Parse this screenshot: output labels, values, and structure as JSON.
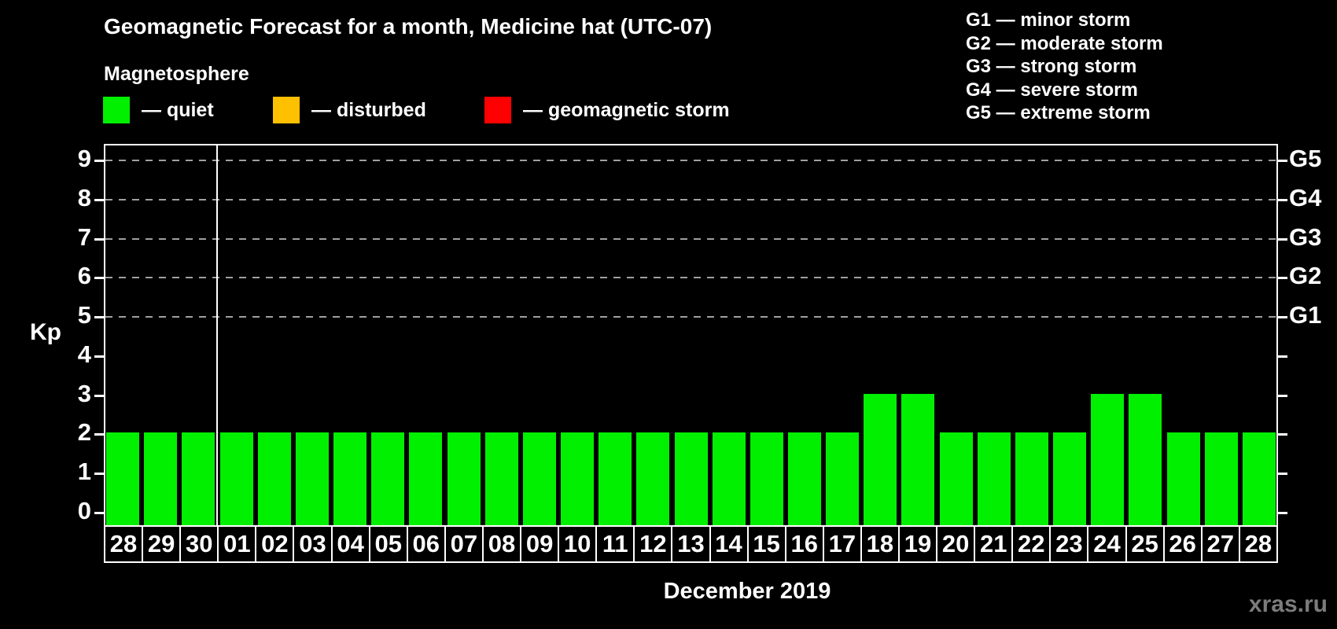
{
  "title": "Geomagnetic Forecast for a month, Medicine hat (UTC-07)",
  "subtitle": "Magnetosphere",
  "legend": {
    "items": [
      {
        "name": "quiet",
        "label": "— quiet",
        "color": "#00f000"
      },
      {
        "name": "disturbed",
        "label": "— disturbed",
        "color": "#ffc000"
      },
      {
        "name": "geomagnetic-storm",
        "label": "— geomagnetic storm",
        "color": "#ff0000"
      }
    ]
  },
  "g_scale_legend": [
    "G1 — minor storm",
    "G2 — moderate storm",
    "G3 — strong storm",
    "G4 — severe storm",
    "G5 — extreme storm"
  ],
  "watermark": "xras.ru",
  "chart_data": {
    "type": "bar",
    "title": "Geomagnetic Forecast for a month, Medicine hat (UTC-07)",
    "xlabel": "December 2019",
    "ylabel": "Kp",
    "ylim": [
      0,
      9
    ],
    "yticks": [
      0,
      1,
      2,
      3,
      4,
      5,
      6,
      7,
      8,
      9
    ],
    "gridline_levels": [
      5,
      6,
      7,
      8,
      9
    ],
    "grid": "dashed horizontal at G-levels only",
    "legend_position": "top",
    "categories": [
      "28",
      "29",
      "30",
      "01",
      "02",
      "03",
      "04",
      "05",
      "06",
      "07",
      "08",
      "09",
      "10",
      "11",
      "12",
      "13",
      "14",
      "15",
      "16",
      "17",
      "18",
      "19",
      "20",
      "21",
      "22",
      "23",
      "24",
      "25",
      "26",
      "27",
      "28"
    ],
    "values": [
      2,
      2,
      2,
      2,
      2,
      2,
      2,
      2,
      2,
      2,
      2,
      2,
      2,
      2,
      2,
      2,
      2,
      2,
      2,
      2,
      3,
      3,
      2,
      2,
      2,
      2,
      3,
      3,
      2,
      2,
      2
    ],
    "month_separator_after_index": 2,
    "right_axis": [
      {
        "kp": 5,
        "label": "G1"
      },
      {
        "kp": 6,
        "label": "G2"
      },
      {
        "kp": 7,
        "label": "G3"
      },
      {
        "kp": 8,
        "label": "G4"
      },
      {
        "kp": 9,
        "label": "G5"
      }
    ],
    "color_rules": {
      "quiet_max": 3,
      "disturbed_max": 4
    },
    "bar_color_all_bars": "#00f000"
  }
}
